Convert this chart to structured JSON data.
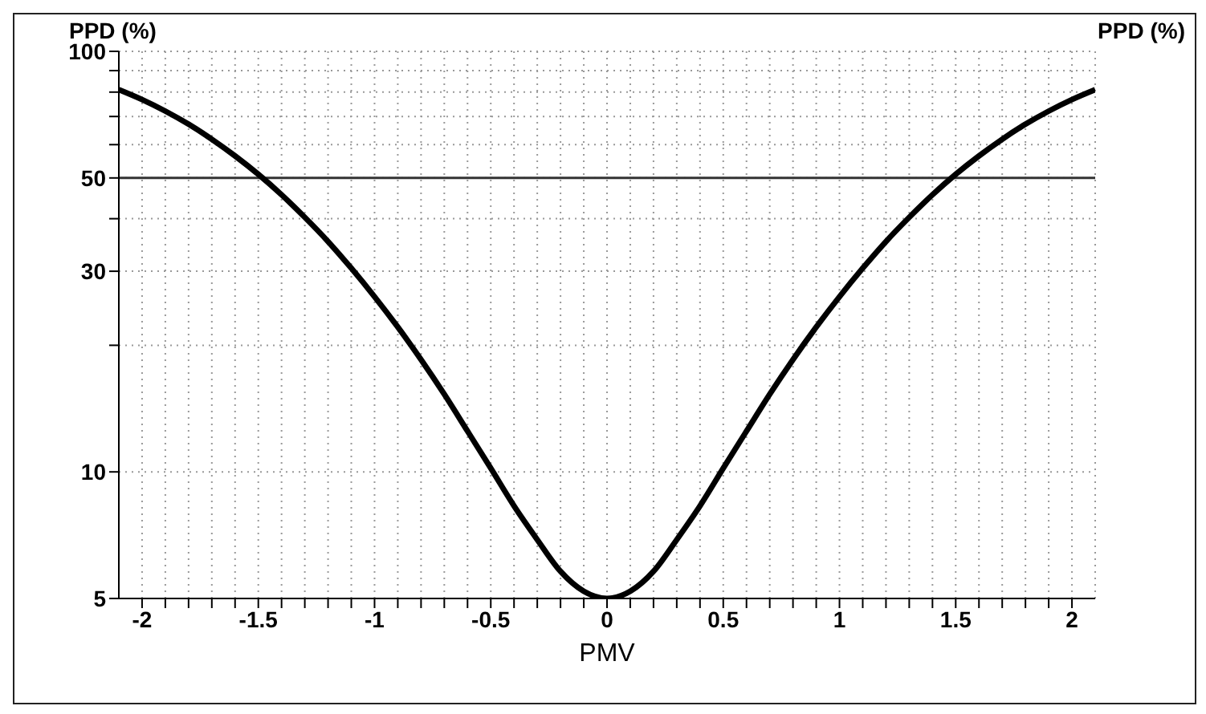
{
  "chart_data": {
    "type": "line",
    "xlabel": "PMV",
    "ylabel": "PPD (%)",
    "annotations": [
      "PPD (%)"
    ],
    "x": [
      -2.1,
      -2,
      -1.9,
      -1.8,
      -1.7,
      -1.6,
      -1.5,
      -1.4,
      -1.3,
      -1.2,
      -1.1,
      -1,
      -0.9,
      -0.8,
      -0.7,
      -0.6,
      -0.5,
      -0.4,
      -0.3,
      -0.2,
      -0.1,
      0,
      0.1,
      0.2,
      0.3,
      0.4,
      0.5,
      0.6,
      0.7,
      0.8,
      0.9,
      1,
      1.1,
      1.2,
      1.3,
      1.4,
      1.5,
      1.6,
      1.7,
      1.8,
      1.9,
      2,
      2.1
    ],
    "series": [
      {
        "color": "#000000",
        "values": [
          81.1,
          76.8,
          72.1,
          67.1,
          61.8,
          56.4,
          51,
          45.6,
          40.3,
          35.3,
          30.5,
          26.1,
          22.1,
          18.5,
          15.3,
          12.5,
          10.2,
          8.3,
          6.9,
          5.8,
          5.2,
          5,
          5.2,
          5.8,
          6.9,
          8.3,
          10.2,
          12.5,
          15.3,
          18.5,
          22.1,
          26.1,
          30.5,
          35.3,
          40.3,
          45.6,
          51,
          56.4,
          61.8,
          67.1,
          72.1,
          76.8,
          81.1
        ]
      }
    ],
    "xlim": [
      -2.1,
      2.1
    ],
    "xticks": [
      -2,
      {
        "value": -1.9,
        "label": null
      },
      {
        "value": -1.8,
        "label": null
      },
      {
        "value": -1.7,
        "label": null
      },
      {
        "value": -1.6,
        "label": null
      },
      -1.5,
      {
        "value": -1.4,
        "label": null
      },
      {
        "value": -1.3,
        "label": null
      },
      {
        "value": -1.2,
        "label": null
      },
      {
        "value": -1.1,
        "label": null
      },
      -1,
      {
        "value": -0.9,
        "label": null
      },
      {
        "value": -0.8,
        "label": null
      },
      {
        "value": -0.7,
        "label": null
      },
      {
        "value": -0.6,
        "label": null
      },
      -0.5,
      {
        "value": -0.4,
        "label": null
      },
      {
        "value": -0.3,
        "label": null
      },
      {
        "value": -0.2,
        "label": null
      },
      {
        "value": -0.1,
        "label": null
      },
      0,
      {
        "value": 0.1,
        "label": null
      },
      {
        "value": 0.2,
        "label": null
      },
      {
        "value": 0.3,
        "label": null
      },
      {
        "value": 0.4,
        "label": null
      },
      0.5,
      {
        "value": 0.6,
        "label": null
      },
      {
        "value": 0.7,
        "label": null
      },
      {
        "value": 0.8,
        "label": null
      },
      {
        "value": 0.9,
        "label": null
      },
      1,
      {
        "value": 1.1,
        "label": null
      },
      {
        "value": 1.2,
        "label": null
      },
      {
        "value": 1.3,
        "label": null
      },
      {
        "value": 1.4,
        "label": null
      },
      1.5,
      {
        "value": 1.6,
        "label": null
      },
      {
        "value": 1.7,
        "label": null
      },
      {
        "value": 1.8,
        "label": null
      },
      {
        "value": 1.9,
        "label": null
      },
      2
    ],
    "ylim": [
      5,
      100
    ],
    "yticks": [
      5,
      10,
      {
        "value": 20,
        "label": null
      },
      30,
      {
        "value": 40,
        "label": null
      },
      50,
      {
        "value": 60,
        "label": null
      },
      {
        "value": 70,
        "label": null
      },
      {
        "value": 80,
        "label": null
      },
      {
        "value": 90,
        "label": null
      },
      100
    ],
    "log": "y",
    "grid": true,
    "marker": "none",
    "line_style": "solid",
    "ref_lines": [
      {
        "axis": "y",
        "value": 50,
        "color": "#333333"
      }
    ]
  }
}
